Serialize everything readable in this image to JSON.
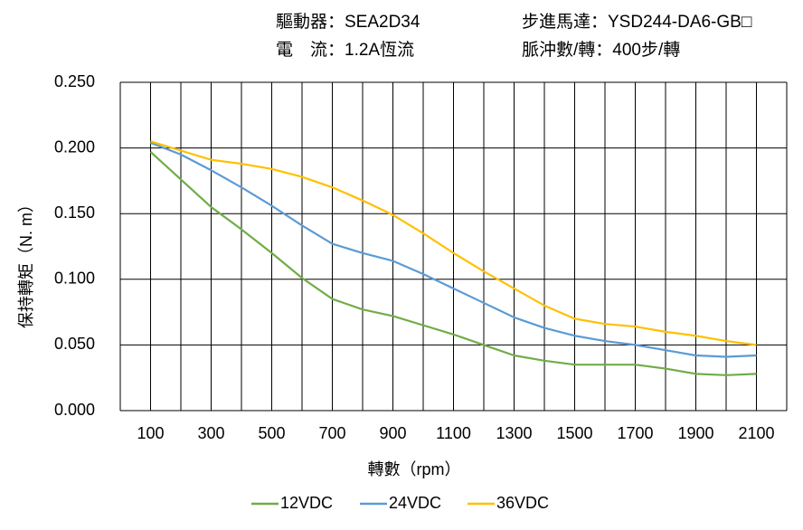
{
  "chart_data": {
    "type": "line",
    "annotations": [
      "驅動器：SEA2D34",
      "步進馬達：YSD244-DA6-GB□",
      "電　流：1.2A恆流",
      "脈沖數/轉：400步/轉"
    ],
    "xlabel": "轉數（rpm）",
    "ylabel": "保持轉矩（N. m）",
    "x": [
      100,
      200,
      300,
      400,
      500,
      600,
      700,
      800,
      900,
      1000,
      1100,
      1200,
      1300,
      1400,
      1500,
      1600,
      1700,
      1800,
      1900,
      2000,
      2100
    ],
    "xlim": [
      0,
      2200
    ],
    "xticks": [
      100,
      300,
      500,
      700,
      900,
      1100,
      1300,
      1500,
      1700,
      1900,
      2100
    ],
    "xgrid": [
      0,
      100,
      200,
      300,
      400,
      500,
      600,
      700,
      800,
      900,
      1000,
      1100,
      1200,
      1300,
      1400,
      1500,
      1600,
      1700,
      1800,
      1900,
      2000,
      2100,
      2200
    ],
    "ylim": [
      0,
      0.25
    ],
    "yticks": [
      {
        "value": 0,
        "label": "0.000"
      },
      {
        "value": 0.05,
        "label": "0.050"
      },
      {
        "value": 0.1,
        "label": "0.100"
      },
      {
        "value": 0.15,
        "label": "0.150"
      },
      {
        "value": 0.2,
        "label": "0.200"
      },
      {
        "value": 0.25,
        "label": "0.250"
      }
    ],
    "grid": true,
    "legend": "bottom",
    "series": [
      {
        "name": "12VDC",
        "color": "#70ad47",
        "values": [
          0.197,
          0.176,
          0.155,
          0.138,
          0.12,
          0.101,
          0.085,
          0.077,
          0.072,
          0.065,
          0.058,
          0.05,
          0.042,
          0.038,
          0.035,
          0.035,
          0.035,
          0.032,
          0.028,
          0.027,
          0.028
        ]
      },
      {
        "name": "24VDC",
        "color": "#5b9bd5",
        "values": [
          0.204,
          0.195,
          0.183,
          0.17,
          0.156,
          0.141,
          0.127,
          0.12,
          0.114,
          0.104,
          0.093,
          0.082,
          0.071,
          0.063,
          0.057,
          0.053,
          0.05,
          0.046,
          0.042,
          0.041,
          0.042
        ]
      },
      {
        "name": "36VDC",
        "color": "#ffc000",
        "values": [
          0.205,
          0.198,
          0.191,
          0.188,
          0.184,
          0.178,
          0.17,
          0.16,
          0.149,
          0.135,
          0.12,
          0.106,
          0.093,
          0.08,
          0.07,
          0.066,
          0.064,
          0.06,
          0.057,
          0.053,
          0.05
        ]
      }
    ]
  }
}
